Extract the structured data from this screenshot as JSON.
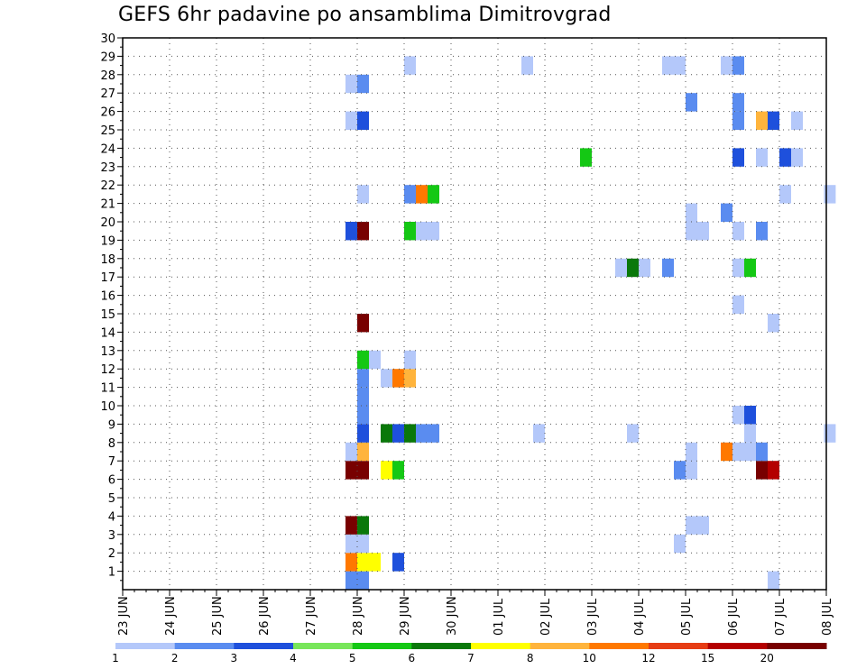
{
  "chart_data": {
    "type": "heatmap",
    "title": "GEFS 6hr padavine po ansamblima Dimitrovgrad",
    "xlabel": "",
    "ylabel": "",
    "x_tick_labels": [
      "23 JUN",
      "24 JUN",
      "25 JUN",
      "26 JUN",
      "27 JUN",
      "28 JUN",
      "29 JUN",
      "30 JUN",
      "01 JUL",
      "02 JUL",
      "03 JUL",
      "04 JUL",
      "05 JUL",
      "06 JUL",
      "07 JUL",
      "08 JUL"
    ],
    "xlim_days": [
      0,
      15
    ],
    "y_tick_labels": [
      "1",
      "2",
      "3",
      "4",
      "5",
      "6",
      "7",
      "8",
      "9",
      "10",
      "11",
      "12",
      "13",
      "14",
      "15",
      "16",
      "17",
      "18",
      "19",
      "20",
      "21",
      "22",
      "23",
      "24",
      "25",
      "26",
      "27",
      "28",
      "29",
      "30"
    ],
    "ylim": [
      0,
      30
    ],
    "grid": true,
    "colorbar": {
      "labels": [
        "1",
        "2",
        "3",
        "4",
        "5",
        "6",
        "7",
        "8",
        "10",
        "12",
        "15",
        "20"
      ],
      "colors": [
        "#b4c8fa",
        "#5a8cf0",
        "#1e50dc",
        "#78e65a",
        "#14c814",
        "#0a780a",
        "#ffff00",
        "#ffb43c",
        "#ff7800",
        "#e63c14",
        "#b40000",
        "#780000"
      ]
    },
    "cells": [
      {
        "day": 4.75,
        "member": 0,
        "value": 2
      },
      {
        "day": 5.0,
        "member": 0,
        "value": 2
      },
      {
        "day": 13.75,
        "member": 0,
        "value": 1
      },
      {
        "day": 4.75,
        "member": 1,
        "value": 10
      },
      {
        "day": 5.0,
        "member": 1,
        "value": 7
      },
      {
        "day": 5.25,
        "member": 1,
        "value": 7
      },
      {
        "day": 5.75,
        "member": 1,
        "value": 3
      },
      {
        "day": 4.75,
        "member": 2,
        "value": 1
      },
      {
        "day": 5.0,
        "member": 2,
        "value": 1
      },
      {
        "day": 11.75,
        "member": 2,
        "value": 1
      },
      {
        "day": 4.75,
        "member": 3,
        "value": 20
      },
      {
        "day": 5.0,
        "member": 3,
        "value": 6
      },
      {
        "day": 12.0,
        "member": 3,
        "value": 1
      },
      {
        "day": 12.25,
        "member": 3,
        "value": 1
      },
      {
        "day": 4.75,
        "member": 6,
        "value": 20
      },
      {
        "day": 5.0,
        "member": 6,
        "value": 20
      },
      {
        "day": 5.5,
        "member": 6,
        "value": 7
      },
      {
        "day": 5.75,
        "member": 6,
        "value": 5
      },
      {
        "day": 11.75,
        "member": 6,
        "value": 2
      },
      {
        "day": 12.0,
        "member": 6,
        "value": 1
      },
      {
        "day": 13.5,
        "member": 6,
        "value": 20
      },
      {
        "day": 13.75,
        "member": 6,
        "value": 15
      },
      {
        "day": 4.75,
        "member": 7,
        "value": 1
      },
      {
        "day": 5.0,
        "member": 7,
        "value": 8
      },
      {
        "day": 12.0,
        "member": 7,
        "value": 1
      },
      {
        "day": 12.75,
        "member": 7,
        "value": 10
      },
      {
        "day": 13.0,
        "member": 7,
        "value": 1
      },
      {
        "day": 13.25,
        "member": 7,
        "value": 1
      },
      {
        "day": 13.5,
        "member": 7,
        "value": 2
      },
      {
        "day": 5.0,
        "member": 8,
        "value": 3
      },
      {
        "day": 5.5,
        "member": 8,
        "value": 6
      },
      {
        "day": 5.75,
        "member": 8,
        "value": 3
      },
      {
        "day": 6.0,
        "member": 8,
        "value": 6
      },
      {
        "day": 6.25,
        "member": 8,
        "value": 2
      },
      {
        "day": 6.5,
        "member": 8,
        "value": 2
      },
      {
        "day": 8.75,
        "member": 8,
        "value": 1
      },
      {
        "day": 10.75,
        "member": 8,
        "value": 1
      },
      {
        "day": 13.25,
        "member": 8,
        "value": 1
      },
      {
        "day": 14.95,
        "member": 8,
        "value": 1
      },
      {
        "day": 5.0,
        "member": 9,
        "value": 2
      },
      {
        "day": 13.0,
        "member": 9,
        "value": 1
      },
      {
        "day": 13.25,
        "member": 9,
        "value": 3
      },
      {
        "day": 5.0,
        "member": 10,
        "value": 2
      },
      {
        "day": 5.0,
        "member": 11,
        "value": 2
      },
      {
        "day": 5.5,
        "member": 11,
        "value": 1
      },
      {
        "day": 5.75,
        "member": 11,
        "value": 10
      },
      {
        "day": 6.0,
        "member": 11,
        "value": 8
      },
      {
        "day": 5.0,
        "member": 12,
        "value": 5
      },
      {
        "day": 5.25,
        "member": 12,
        "value": 1
      },
      {
        "day": 6.0,
        "member": 12,
        "value": 1
      },
      {
        "day": 5.0,
        "member": 14,
        "value": 20
      },
      {
        "day": 13.75,
        "member": 14,
        "value": 1
      },
      {
        "day": 13.0,
        "member": 15,
        "value": 1
      },
      {
        "day": 10.5,
        "member": 17,
        "value": 1
      },
      {
        "day": 10.75,
        "member": 17,
        "value": 6
      },
      {
        "day": 11.0,
        "member": 17,
        "value": 1
      },
      {
        "day": 11.5,
        "member": 17,
        "value": 2
      },
      {
        "day": 13.0,
        "member": 17,
        "value": 1
      },
      {
        "day": 13.25,
        "member": 17,
        "value": 5
      },
      {
        "day": 4.75,
        "member": 19,
        "value": 3
      },
      {
        "day": 5.0,
        "member": 19,
        "value": 20
      },
      {
        "day": 6.0,
        "member": 19,
        "value": 5
      },
      {
        "day": 6.25,
        "member": 19,
        "value": 1
      },
      {
        "day": 6.5,
        "member": 19,
        "value": 1
      },
      {
        "day": 12.0,
        "member": 19,
        "value": 1
      },
      {
        "day": 12.25,
        "member": 19,
        "value": 1
      },
      {
        "day": 13.0,
        "member": 19,
        "value": 1
      },
      {
        "day": 13.5,
        "member": 19,
        "value": 2
      },
      {
        "day": 12.0,
        "member": 20,
        "value": 1
      },
      {
        "day": 12.75,
        "member": 20,
        "value": 2
      },
      {
        "day": 5.0,
        "member": 21,
        "value": 1
      },
      {
        "day": 6.0,
        "member": 21,
        "value": 2
      },
      {
        "day": 6.25,
        "member": 21,
        "value": 10
      },
      {
        "day": 6.5,
        "member": 21,
        "value": 5
      },
      {
        "day": 14.0,
        "member": 21,
        "value": 1
      },
      {
        "day": 14.95,
        "member": 21,
        "value": 1
      },
      {
        "day": 9.75,
        "member": 23,
        "value": 5
      },
      {
        "day": 13.0,
        "member": 23,
        "value": 3
      },
      {
        "day": 13.5,
        "member": 23,
        "value": 1
      },
      {
        "day": 14.0,
        "member": 23,
        "value": 3
      },
      {
        "day": 14.25,
        "member": 23,
        "value": 1
      },
      {
        "day": 4.75,
        "member": 25,
        "value": 1
      },
      {
        "day": 5.0,
        "member": 25,
        "value": 3
      },
      {
        "day": 13.0,
        "member": 25,
        "value": 2
      },
      {
        "day": 13.5,
        "member": 25,
        "value": 8
      },
      {
        "day": 13.75,
        "member": 25,
        "value": 3
      },
      {
        "day": 14.25,
        "member": 25,
        "value": 1
      },
      {
        "day": 13.0,
        "member": 26,
        "value": 2
      },
      {
        "day": 12.0,
        "member": 26,
        "value": 2
      },
      {
        "day": 4.75,
        "member": 27,
        "value": 1
      },
      {
        "day": 5.0,
        "member": 27,
        "value": 2
      },
      {
        "day": 6.0,
        "member": 28,
        "value": 1
      },
      {
        "day": 8.5,
        "member": 28,
        "value": 1
      },
      {
        "day": 11.5,
        "member": 28,
        "value": 1
      },
      {
        "day": 11.75,
        "member": 28,
        "value": 1
      },
      {
        "day": 12.75,
        "member": 28,
        "value": 1
      },
      {
        "day": 13.0,
        "member": 28,
        "value": 2
      }
    ]
  }
}
